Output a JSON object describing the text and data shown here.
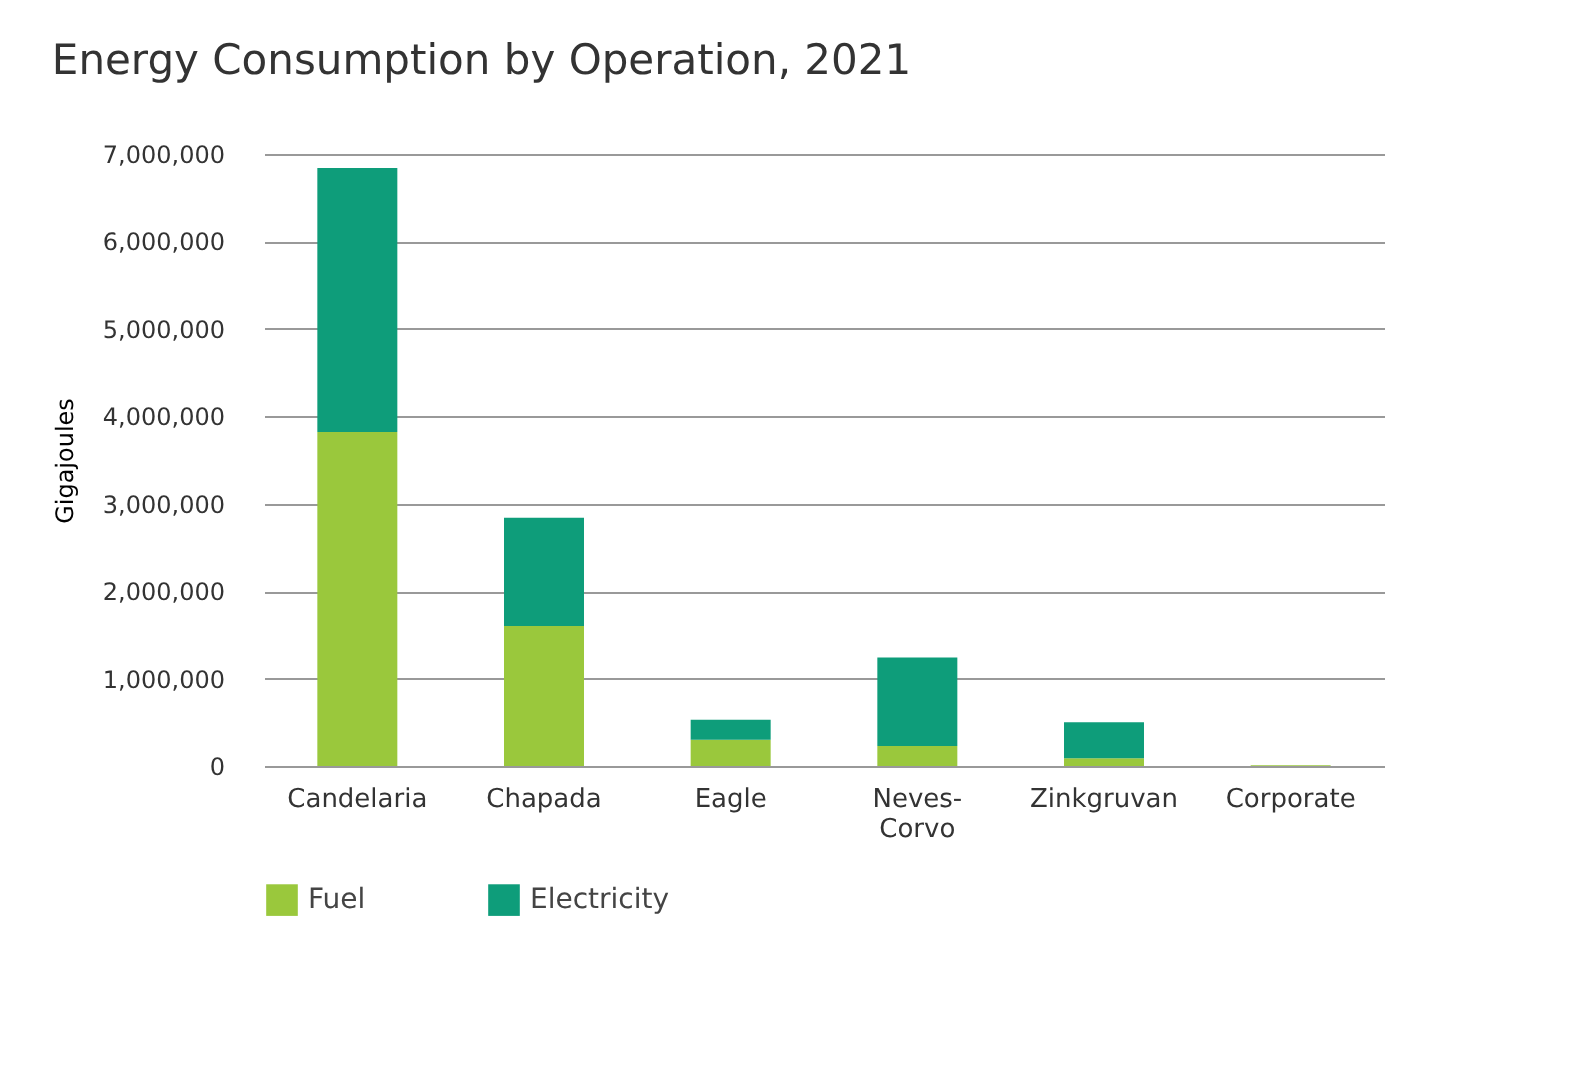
{
  "chart_data": {
    "type": "bar",
    "title": "Energy Consumption by Operation, 2021",
    "ylabel": "Gigajoules",
    "categories": [
      "Candelaria",
      "Chapada",
      "Eagle",
      "Neves-Corvo",
      "Zinkgruvan",
      "Corporate"
    ],
    "stacked": true,
    "series": [
      {
        "name": "Fuel",
        "color": "#9ac83c",
        "values": [
          3820000,
          1600000,
          300000,
          230000,
          90000,
          10000
        ]
      },
      {
        "name": "Electricity",
        "color": "#0e9d7a",
        "values": [
          3020000,
          1240000,
          230000,
          1010000,
          410000,
          0
        ]
      }
    ],
    "ylim": [
      0,
      7000000
    ],
    "yticks": [
      0,
      {
        "value": 1000000,
        "label": "1,000,000"
      },
      {
        "value": 2000000,
        "label": "2,000,000"
      },
      {
        "value": 3000000,
        "label": "3,000,000"
      },
      {
        "value": 4000000,
        "label": "4,000,000"
      },
      {
        "value": 5000000,
        "label": "5,000,000"
      },
      {
        "value": 6000000,
        "label": "6,000,000"
      },
      {
        "value": 7000000,
        "label": "7,000,000"
      }
    ],
    "grid": "y",
    "legend": "bottom left"
  }
}
